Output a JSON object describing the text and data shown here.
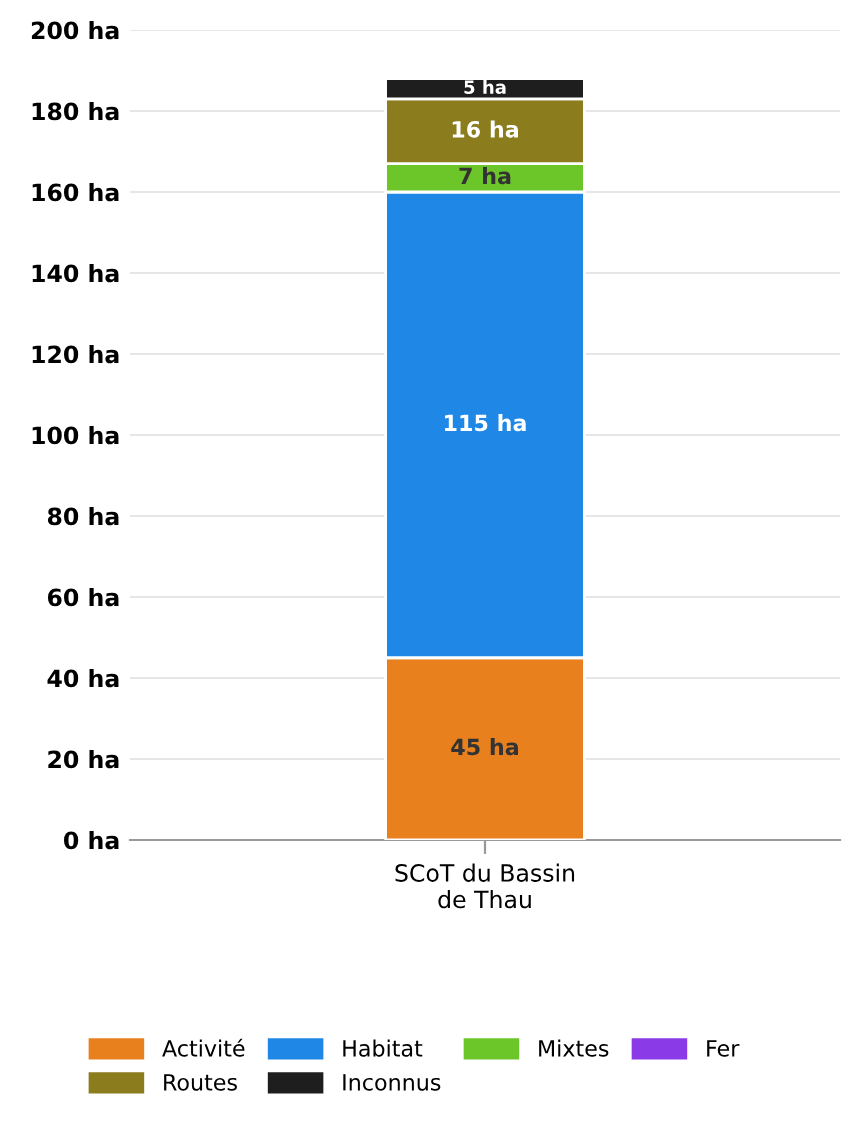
{
  "chart_data": {
    "type": "bar",
    "stacked": true,
    "categories": [
      "SCoT du Bassin\nde Thau"
    ],
    "series": [
      {
        "name": "Activité",
        "color": "#e8801e",
        "values": [
          45
        ],
        "value_labels": [
          "45 ha"
        ]
      },
      {
        "name": "Habitat",
        "color": "#1f88e6",
        "values": [
          115
        ],
        "value_labels": [
          "115 ha"
        ]
      },
      {
        "name": "Mixtes",
        "color": "#6cc62a",
        "values": [
          7
        ],
        "value_labels": [
          "7 ha"
        ]
      },
      {
        "name": "Fer",
        "color": "#8b3ae8",
        "values": [
          0
        ],
        "value_labels": [
          null
        ]
      },
      {
        "name": "Routes",
        "color": "#8b7c1e",
        "values": [
          16
        ],
        "value_labels": [
          "16 ha"
        ]
      },
      {
        "name": "Inconnus",
        "color": "#1e1e1e",
        "values": [
          5
        ],
        "value_labels": [
          "5 ha"
        ]
      }
    ],
    "ylim": [
      0,
      200
    ],
    "yticks": [
      {
        "value": 0,
        "label": "0 ha"
      },
      {
        "value": 20,
        "label": "20 ha"
      },
      {
        "value": 40,
        "label": "40 ha"
      },
      {
        "value": 60,
        "label": "60 ha"
      },
      {
        "value": 80,
        "label": "80 ha"
      },
      {
        "value": 100,
        "label": "100 ha"
      },
      {
        "value": 120,
        "label": "120 ha"
      },
      {
        "value": 140,
        "label": "140 ha"
      },
      {
        "value": 160,
        "label": "160 ha"
      },
      {
        "value": 180,
        "label": "180 ha"
      },
      {
        "value": 200,
        "label": "200 ha"
      }
    ],
    "grid": "y",
    "legend": "bottom"
  }
}
